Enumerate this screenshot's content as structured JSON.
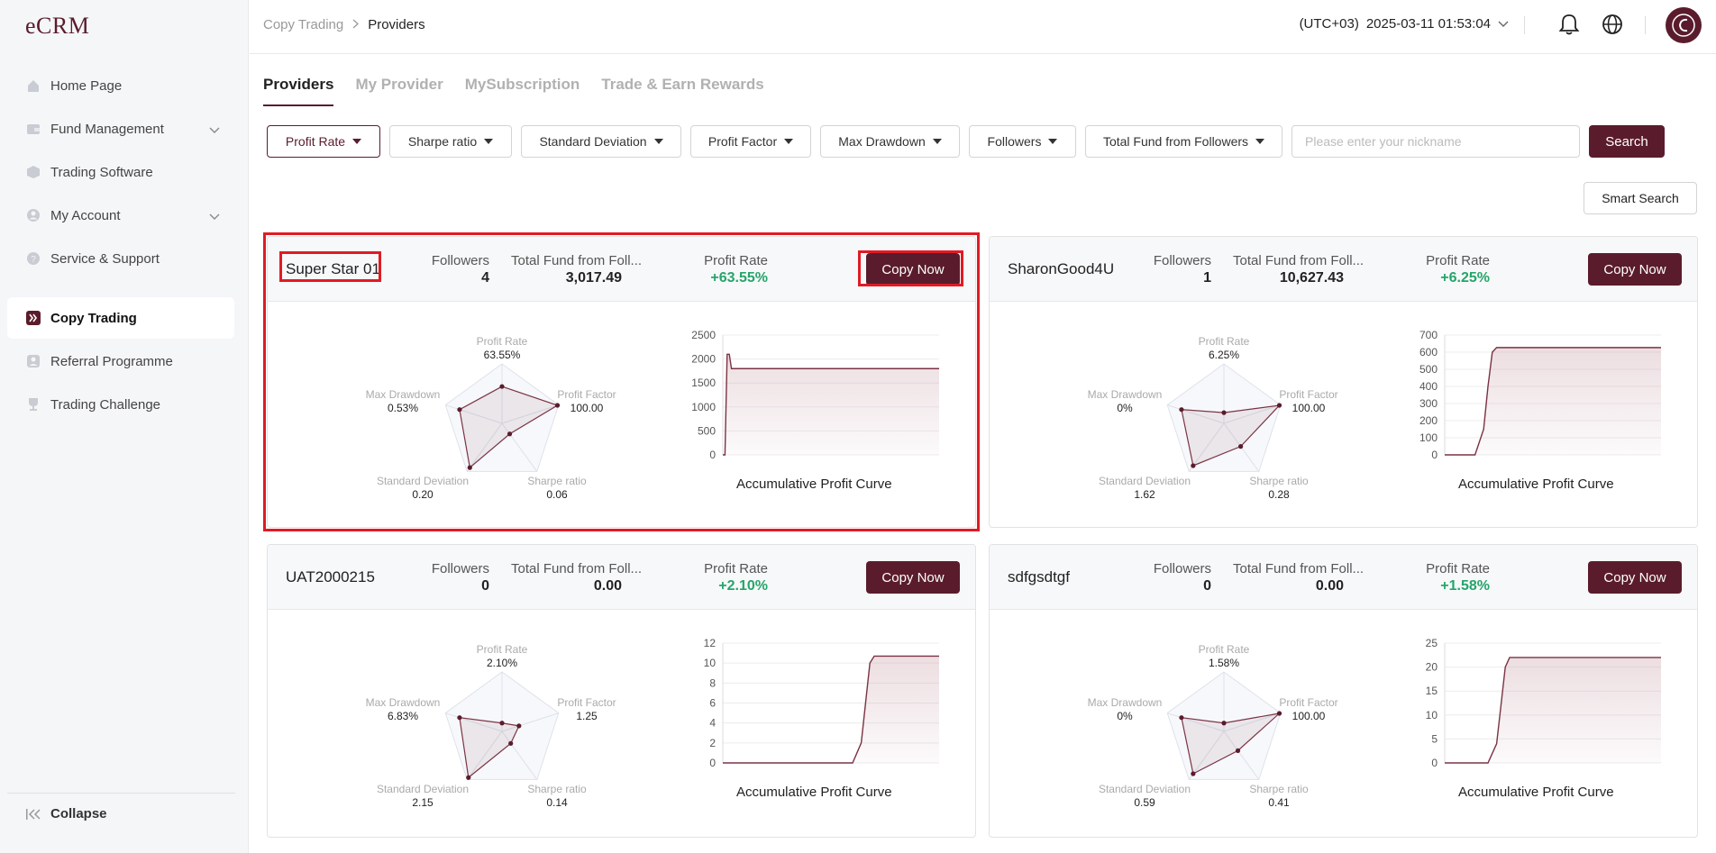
{
  "app": {
    "logo": "eCRM"
  },
  "sidebar": {
    "items": [
      {
        "label": "Home Page",
        "icon": "home-icon"
      },
      {
        "label": "Fund Management",
        "icon": "wallet-icon",
        "expandable": true
      },
      {
        "label": "Trading Software",
        "icon": "box-icon"
      },
      {
        "label": "My Account",
        "icon": "user-icon",
        "expandable": true
      },
      {
        "label": "Service & Support",
        "icon": "help-icon"
      },
      {
        "label": "Copy Trading",
        "icon": "copy-trading-icon",
        "active": true
      },
      {
        "label": "Referral Programme",
        "icon": "referral-icon"
      },
      {
        "label": "Trading Challenge",
        "icon": "trophy-icon"
      }
    ],
    "collapse_label": "Collapse"
  },
  "header": {
    "breadcrumb": [
      "Copy Trading",
      "Providers"
    ],
    "timezone": "(UTC+03)",
    "datetime": "2025-03-11 01:53:04"
  },
  "tabs": [
    "Providers",
    "My Provider",
    "MySubscription",
    "Trade & Earn Rewards"
  ],
  "filters": [
    "Profit Rate",
    "Sharpe ratio",
    "Standard Deviation",
    "Profit Factor",
    "Max Drawdown",
    "Followers",
    "Total Fund from Followers"
  ],
  "search": {
    "placeholder": "Please enter your nickname",
    "button": "Search",
    "smart": "Smart Search"
  },
  "labels": {
    "followers": "Followers",
    "total_fund": "Total Fund from Foll...",
    "profit_rate": "Profit Rate",
    "copy_now": "Copy Now",
    "curve_title": "Accumulative Profit Curve",
    "radar": {
      "profit_rate": "Profit Rate",
      "profit_factor": "Profit Factor",
      "sharpe": "Sharpe ratio",
      "std_dev": "Standard Deviation",
      "max_dd": "Max Drawdown"
    }
  },
  "colors": {
    "brand": "#5a1c2c",
    "positive": "#25a56a",
    "highlight": "#e01b24"
  },
  "cards": [
    {
      "name": "Super Star 01",
      "followers": "4",
      "total_fund": "3,017.49",
      "profit_rate": "+63.55%",
      "radar": {
        "profit_rate": "63.55%",
        "profit_factor": "100.00",
        "sharpe": "0.06",
        "std_dev": "0.20",
        "max_dd": "0.53%"
      },
      "highlighted": true
    },
    {
      "name": "SharonGood4U",
      "followers": "1",
      "total_fund": "10,627.43",
      "profit_rate": "+6.25%",
      "radar": {
        "profit_rate": "6.25%",
        "profit_factor": "100.00",
        "sharpe": "0.28",
        "std_dev": "1.62",
        "max_dd": "0%"
      },
      "highlighted": false
    },
    {
      "name": "UAT2000215",
      "followers": "0",
      "total_fund": "0.00",
      "profit_rate": "+2.10%",
      "radar": {
        "profit_rate": "2.10%",
        "profit_factor": "1.25",
        "sharpe": "0.14",
        "std_dev": "2.15",
        "max_dd": "6.83%"
      },
      "highlighted": false
    },
    {
      "name": "sdfgsdtgf",
      "followers": "0",
      "total_fund": "0.00",
      "profit_rate": "+1.58%",
      "radar": {
        "profit_rate": "1.58%",
        "profit_factor": "100.00",
        "sharpe": "0.41",
        "std_dev": "0.59",
        "max_dd": "0%"
      },
      "highlighted": false
    }
  ],
  "chart_data": [
    {
      "type": "line",
      "title": "Accumulative Profit Curve",
      "ylim": [
        0,
        2500
      ],
      "yticks": [
        "2500",
        "2000",
        "1500",
        "1000",
        "500",
        "0"
      ],
      "x": [
        0,
        0.01,
        0.02,
        0.03,
        0.04,
        1
      ],
      "values": [
        0,
        0,
        2100,
        2100,
        1800,
        1800
      ]
    },
    {
      "type": "line",
      "title": "Accumulative Profit Curve",
      "ylim": [
        0,
        700
      ],
      "yticks": [
        "700",
        "600",
        "500",
        "400",
        "300",
        "200",
        "100",
        "0"
      ],
      "x": [
        0,
        0.14,
        0.18,
        0.2,
        0.22,
        0.24,
        1
      ],
      "values": [
        0,
        0,
        150,
        400,
        600,
        627,
        627
      ]
    },
    {
      "type": "line",
      "title": "Accumulative Profit Curve",
      "ylim": [
        0,
        12
      ],
      "yticks": [
        "12",
        "10",
        "8",
        "6",
        "4",
        "2",
        "0"
      ],
      "x": [
        0,
        0.6,
        0.64,
        0.66,
        0.68,
        0.7,
        1
      ],
      "values": [
        0,
        0,
        2,
        6,
        10,
        10.7,
        10.7
      ]
    },
    {
      "type": "line",
      "title": "Accumulative Profit Curve",
      "ylim": [
        0,
        25
      ],
      "yticks": [
        "25",
        "20",
        "15",
        "10",
        "5",
        "0"
      ],
      "x": [
        0,
        0.2,
        0.24,
        0.26,
        0.28,
        0.3,
        1
      ],
      "values": [
        0,
        0,
        4,
        12,
        20,
        22,
        22
      ]
    }
  ]
}
